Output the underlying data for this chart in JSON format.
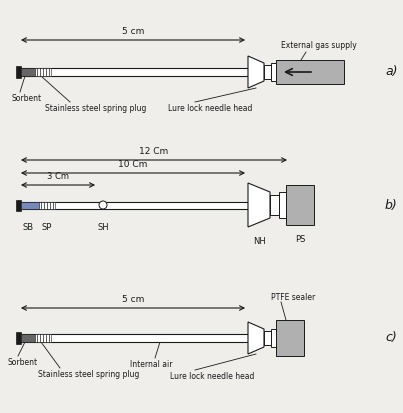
{
  "bg_color": "#f0eeea",
  "panels": {
    "a": {
      "label": "a)",
      "dim_label": "5 cm",
      "sorbent_label": "Sorbent",
      "spring_label": "Stainless steel spring plug",
      "lure_label": "Lure lock needle head",
      "gas_label": "External gas supply"
    },
    "b": {
      "label": "b)",
      "dim1_label": "12 Cm",
      "dim2_label": "10 Cm",
      "dim3_label": "3 Cm",
      "sb_label": "SB",
      "sp_label": "SP",
      "sh_label": "SH",
      "nh_label": "NH",
      "ps_label": "PS"
    },
    "c": {
      "label": "c)",
      "dim_label": "5 cm",
      "sorbent_label": "Sorbent",
      "spring_label": "Stainless steel spring plug",
      "internal_label": "Internal air",
      "lure_label": "Lure lock needle head",
      "ptfe_label": "PTFE sealer"
    }
  },
  "col_dark": "#1a1a1a",
  "col_gray": "#999999",
  "col_lightgray": "#b0b0b0",
  "col_blue": "#6677aa",
  "col_sorbent": "#444444",
  "col_white": "#ffffff",
  "col_needle_bg": "#1a1a1a"
}
